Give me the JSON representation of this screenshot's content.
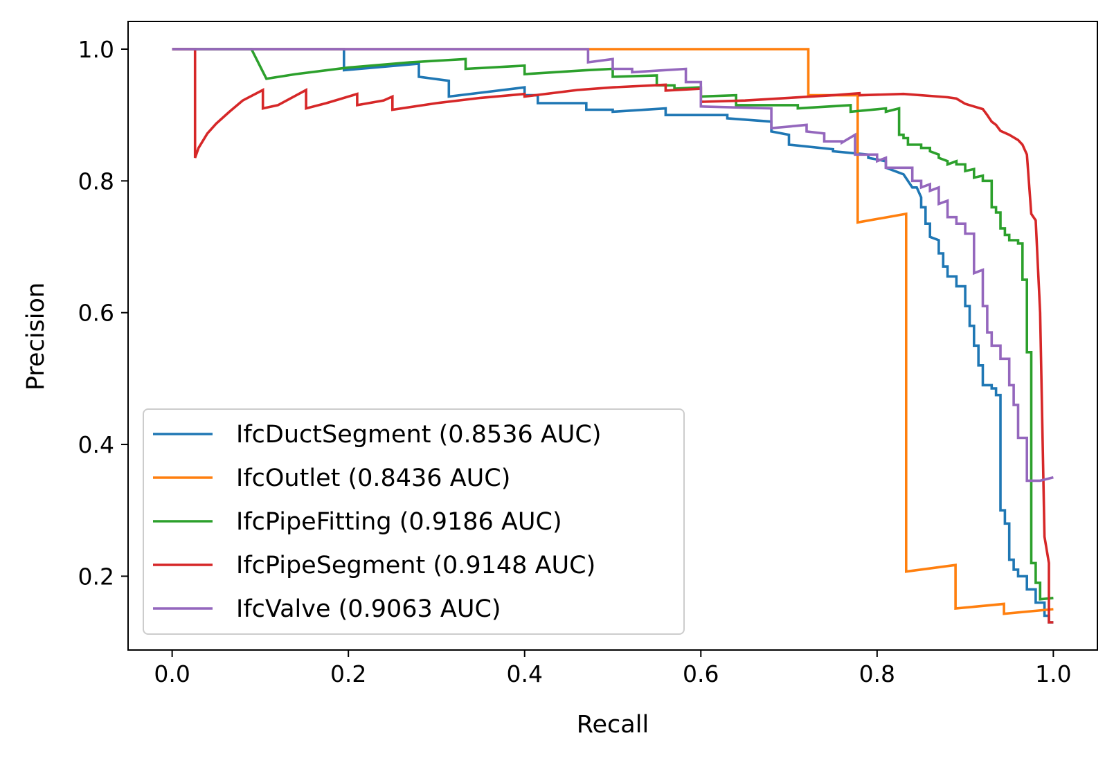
{
  "chart_data": {
    "type": "line",
    "title": "",
    "xlabel": "Recall",
    "ylabel": "Precision",
    "xlim": [
      -0.05,
      1.05
    ],
    "ylim": [
      0.088,
      1.042
    ],
    "xticks": [
      0.0,
      0.2,
      0.4,
      0.6,
      0.8,
      1.0
    ],
    "xtick_labels": [
      "0.0",
      "0.2",
      "0.4",
      "0.6",
      "0.8",
      "1.0"
    ],
    "yticks": [
      0.2,
      0.4,
      0.6,
      0.8,
      1.0
    ],
    "ytick_labels": [
      "0.2",
      "0.4",
      "0.6",
      "0.8",
      "1.0"
    ],
    "grid": false,
    "legend_position": "lower-left",
    "series": [
      {
        "name": "IfcDuctSegment (0.8536 AUC)",
        "color": "#1f77b4",
        "points": [
          [
            0,
            1.0
          ],
          [
            0.195,
            1.0
          ],
          [
            0.195,
            0.968
          ],
          [
            0.28,
            0.978
          ],
          [
            0.28,
            0.958
          ],
          [
            0.314,
            0.952
          ],
          [
            0.314,
            0.928
          ],
          [
            0.4,
            0.942
          ],
          [
            0.4,
            0.93
          ],
          [
            0.415,
            0.93
          ],
          [
            0.415,
            0.918
          ],
          [
            0.47,
            0.918
          ],
          [
            0.47,
            0.908
          ],
          [
            0.5,
            0.908
          ],
          [
            0.5,
            0.905
          ],
          [
            0.56,
            0.91
          ],
          [
            0.56,
            0.9
          ],
          [
            0.63,
            0.9
          ],
          [
            0.63,
            0.895
          ],
          [
            0.68,
            0.89
          ],
          [
            0.68,
            0.875
          ],
          [
            0.7,
            0.87
          ],
          [
            0.7,
            0.855
          ],
          [
            0.75,
            0.848
          ],
          [
            0.75,
            0.845
          ],
          [
            0.79,
            0.84
          ],
          [
            0.79,
            0.835
          ],
          [
            0.81,
            0.83
          ],
          [
            0.81,
            0.82
          ],
          [
            0.82,
            0.815
          ],
          [
            0.83,
            0.81
          ],
          [
            0.84,
            0.79
          ],
          [
            0.845,
            0.79
          ],
          [
            0.85,
            0.775
          ],
          [
            0.85,
            0.76
          ],
          [
            0.855,
            0.76
          ],
          [
            0.855,
            0.735
          ],
          [
            0.86,
            0.735
          ],
          [
            0.86,
            0.715
          ],
          [
            0.87,
            0.71
          ],
          [
            0.87,
            0.69
          ],
          [
            0.875,
            0.69
          ],
          [
            0.875,
            0.67
          ],
          [
            0.88,
            0.67
          ],
          [
            0.88,
            0.655
          ],
          [
            0.89,
            0.655
          ],
          [
            0.89,
            0.64
          ],
          [
            0.9,
            0.64
          ],
          [
            0.9,
            0.61
          ],
          [
            0.905,
            0.61
          ],
          [
            0.905,
            0.58
          ],
          [
            0.91,
            0.58
          ],
          [
            0.91,
            0.55
          ],
          [
            0.915,
            0.55
          ],
          [
            0.915,
            0.52
          ],
          [
            0.92,
            0.52
          ],
          [
            0.92,
            0.49
          ],
          [
            0.93,
            0.49
          ],
          [
            0.93,
            0.485
          ],
          [
            0.935,
            0.485
          ],
          [
            0.935,
            0.475
          ],
          [
            0.94,
            0.475
          ],
          [
            0.94,
            0.3
          ],
          [
            0.945,
            0.3
          ],
          [
            0.945,
            0.28
          ],
          [
            0.95,
            0.28
          ],
          [
            0.95,
            0.225
          ],
          [
            0.955,
            0.225
          ],
          [
            0.955,
            0.21
          ],
          [
            0.96,
            0.21
          ],
          [
            0.96,
            0.2
          ],
          [
            0.97,
            0.2
          ],
          [
            0.97,
            0.18
          ],
          [
            0.98,
            0.18
          ],
          [
            0.98,
            0.16
          ],
          [
            0.99,
            0.16
          ],
          [
            0.99,
            0.14
          ],
          [
            0.995,
            0.14
          ],
          [
            0.995,
            0.13
          ],
          [
            1.0,
            0.13
          ]
        ]
      },
      {
        "name": "IfcOutlet (0.8436 AUC)",
        "color": "#ff7f0e",
        "points": [
          [
            0,
            1.0
          ],
          [
            0.722,
            1.0
          ],
          [
            0.722,
            0.93
          ],
          [
            0.778,
            0.93
          ],
          [
            0.778,
            0.737
          ],
          [
            0.833,
            0.75
          ],
          [
            0.833,
            0.207
          ],
          [
            0.889,
            0.217
          ],
          [
            0.889,
            0.151
          ],
          [
            0.944,
            0.158
          ],
          [
            0.944,
            0.143
          ],
          [
            1.0,
            0.15
          ]
        ]
      },
      {
        "name": "IfcPipeFitting (0.9186 AUC)",
        "color": "#2ca02c",
        "points": [
          [
            0,
            1.0
          ],
          [
            0.09,
            1.0
          ],
          [
            0.107,
            0.955
          ],
          [
            0.14,
            0.962
          ],
          [
            0.2,
            0.972
          ],
          [
            0.27,
            0.98
          ],
          [
            0.333,
            0.985
          ],
          [
            0.333,
            0.97
          ],
          [
            0.4,
            0.975
          ],
          [
            0.4,
            0.962
          ],
          [
            0.47,
            0.968
          ],
          [
            0.5,
            0.97
          ],
          [
            0.5,
            0.958
          ],
          [
            0.55,
            0.96
          ],
          [
            0.55,
            0.945
          ],
          [
            0.57,
            0.945
          ],
          [
            0.57,
            0.94
          ],
          [
            0.6,
            0.942
          ],
          [
            0.6,
            0.928
          ],
          [
            0.64,
            0.93
          ],
          [
            0.64,
            0.915
          ],
          [
            0.71,
            0.915
          ],
          [
            0.71,
            0.91
          ],
          [
            0.77,
            0.915
          ],
          [
            0.77,
            0.905
          ],
          [
            0.81,
            0.91
          ],
          [
            0.81,
            0.905
          ],
          [
            0.825,
            0.91
          ],
          [
            0.825,
            0.87
          ],
          [
            0.83,
            0.87
          ],
          [
            0.83,
            0.865
          ],
          [
            0.835,
            0.865
          ],
          [
            0.835,
            0.855
          ],
          [
            0.85,
            0.855
          ],
          [
            0.85,
            0.85
          ],
          [
            0.86,
            0.85
          ],
          [
            0.86,
            0.845
          ],
          [
            0.87,
            0.84
          ],
          [
            0.87,
            0.835
          ],
          [
            0.88,
            0.83
          ],
          [
            0.88,
            0.825
          ],
          [
            0.89,
            0.83
          ],
          [
            0.89,
            0.825
          ],
          [
            0.9,
            0.825
          ],
          [
            0.9,
            0.815
          ],
          [
            0.91,
            0.818
          ],
          [
            0.91,
            0.805
          ],
          [
            0.92,
            0.808
          ],
          [
            0.92,
            0.8
          ],
          [
            0.93,
            0.8
          ],
          [
            0.93,
            0.76
          ],
          [
            0.935,
            0.76
          ],
          [
            0.935,
            0.752
          ],
          [
            0.94,
            0.752
          ],
          [
            0.94,
            0.728
          ],
          [
            0.945,
            0.728
          ],
          [
            0.945,
            0.718
          ],
          [
            0.95,
            0.718
          ],
          [
            0.95,
            0.71
          ],
          [
            0.96,
            0.71
          ],
          [
            0.96,
            0.705
          ],
          [
            0.965,
            0.705
          ],
          [
            0.965,
            0.65
          ],
          [
            0.97,
            0.65
          ],
          [
            0.97,
            0.54
          ],
          [
            0.975,
            0.54
          ],
          [
            0.975,
            0.22
          ],
          [
            0.98,
            0.22
          ],
          [
            0.98,
            0.19
          ],
          [
            0.985,
            0.19
          ],
          [
            0.985,
            0.165
          ],
          [
            1.0,
            0.167
          ]
        ]
      },
      {
        "name": "IfcPipeSegment (0.9148 AUC)",
        "color": "#d62728",
        "points": [
          [
            0,
            1.0
          ],
          [
            0.026,
            1.0
          ],
          [
            0.026,
            0.835
          ],
          [
            0.03,
            0.85
          ],
          [
            0.04,
            0.872
          ],
          [
            0.05,
            0.887
          ],
          [
            0.065,
            0.905
          ],
          [
            0.08,
            0.922
          ],
          [
            0.103,
            0.938
          ],
          [
            0.103,
            0.91
          ],
          [
            0.12,
            0.915
          ],
          [
            0.152,
            0.938
          ],
          [
            0.152,
            0.91
          ],
          [
            0.175,
            0.918
          ],
          [
            0.21,
            0.932
          ],
          [
            0.21,
            0.915
          ],
          [
            0.24,
            0.922
          ],
          [
            0.25,
            0.928
          ],
          [
            0.25,
            0.908
          ],
          [
            0.3,
            0.918
          ],
          [
            0.35,
            0.926
          ],
          [
            0.4,
            0.932
          ],
          [
            0.4,
            0.928
          ],
          [
            0.46,
            0.938
          ],
          [
            0.5,
            0.942
          ],
          [
            0.56,
            0.946
          ],
          [
            0.56,
            0.937
          ],
          [
            0.6,
            0.94
          ],
          [
            0.6,
            0.92
          ],
          [
            0.65,
            0.922
          ],
          [
            0.7,
            0.926
          ],
          [
            0.75,
            0.93
          ],
          [
            0.78,
            0.933
          ],
          [
            0.78,
            0.93
          ],
          [
            0.83,
            0.932
          ],
          [
            0.87,
            0.928
          ],
          [
            0.88,
            0.927
          ],
          [
            0.89,
            0.925
          ],
          [
            0.9,
            0.917
          ],
          [
            0.91,
            0.913
          ],
          [
            0.92,
            0.909
          ],
          [
            0.925,
            0.9
          ],
          [
            0.93,
            0.89
          ],
          [
            0.935,
            0.885
          ],
          [
            0.94,
            0.876
          ],
          [
            0.95,
            0.87
          ],
          [
            0.96,
            0.862
          ],
          [
            0.965,
            0.855
          ],
          [
            0.97,
            0.84
          ],
          [
            0.975,
            0.75
          ],
          [
            0.98,
            0.74
          ],
          [
            0.985,
            0.6
          ],
          [
            0.99,
            0.26
          ],
          [
            0.995,
            0.22
          ],
          [
            0.995,
            0.13
          ],
          [
            1.0,
            0.13
          ]
        ]
      },
      {
        "name": "IfcValve (0.9063 AUC)",
        "color": "#9467bd",
        "points": [
          [
            0,
            1.0
          ],
          [
            0.472,
            1.0
          ],
          [
            0.472,
            0.98
          ],
          [
            0.5,
            0.985
          ],
          [
            0.5,
            0.97
          ],
          [
            0.522,
            0.97
          ],
          [
            0.522,
            0.965
          ],
          [
            0.583,
            0.97
          ],
          [
            0.583,
            0.95
          ],
          [
            0.6,
            0.95
          ],
          [
            0.6,
            0.913
          ],
          [
            0.68,
            0.91
          ],
          [
            0.68,
            0.88
          ],
          [
            0.72,
            0.885
          ],
          [
            0.72,
            0.875
          ],
          [
            0.74,
            0.872
          ],
          [
            0.74,
            0.86
          ],
          [
            0.76,
            0.86
          ],
          [
            0.76,
            0.858
          ],
          [
            0.775,
            0.87
          ],
          [
            0.775,
            0.84
          ],
          [
            0.8,
            0.84
          ],
          [
            0.8,
            0.83
          ],
          [
            0.81,
            0.835
          ],
          [
            0.81,
            0.82
          ],
          [
            0.84,
            0.82
          ],
          [
            0.84,
            0.8
          ],
          [
            0.85,
            0.8
          ],
          [
            0.85,
            0.79
          ],
          [
            0.86,
            0.795
          ],
          [
            0.86,
            0.785
          ],
          [
            0.87,
            0.79
          ],
          [
            0.87,
            0.765
          ],
          [
            0.88,
            0.77
          ],
          [
            0.88,
            0.745
          ],
          [
            0.89,
            0.745
          ],
          [
            0.89,
            0.735
          ],
          [
            0.9,
            0.735
          ],
          [
            0.9,
            0.72
          ],
          [
            0.91,
            0.72
          ],
          [
            0.91,
            0.66
          ],
          [
            0.92,
            0.665
          ],
          [
            0.92,
            0.61
          ],
          [
            0.925,
            0.61
          ],
          [
            0.925,
            0.57
          ],
          [
            0.93,
            0.57
          ],
          [
            0.93,
            0.55
          ],
          [
            0.94,
            0.55
          ],
          [
            0.94,
            0.53
          ],
          [
            0.95,
            0.53
          ],
          [
            0.95,
            0.49
          ],
          [
            0.955,
            0.49
          ],
          [
            0.955,
            0.46
          ],
          [
            0.96,
            0.46
          ],
          [
            0.96,
            0.41
          ],
          [
            0.97,
            0.41
          ],
          [
            0.97,
            0.345
          ],
          [
            0.985,
            0.345
          ],
          [
            1.0,
            0.35
          ]
        ]
      }
    ]
  }
}
